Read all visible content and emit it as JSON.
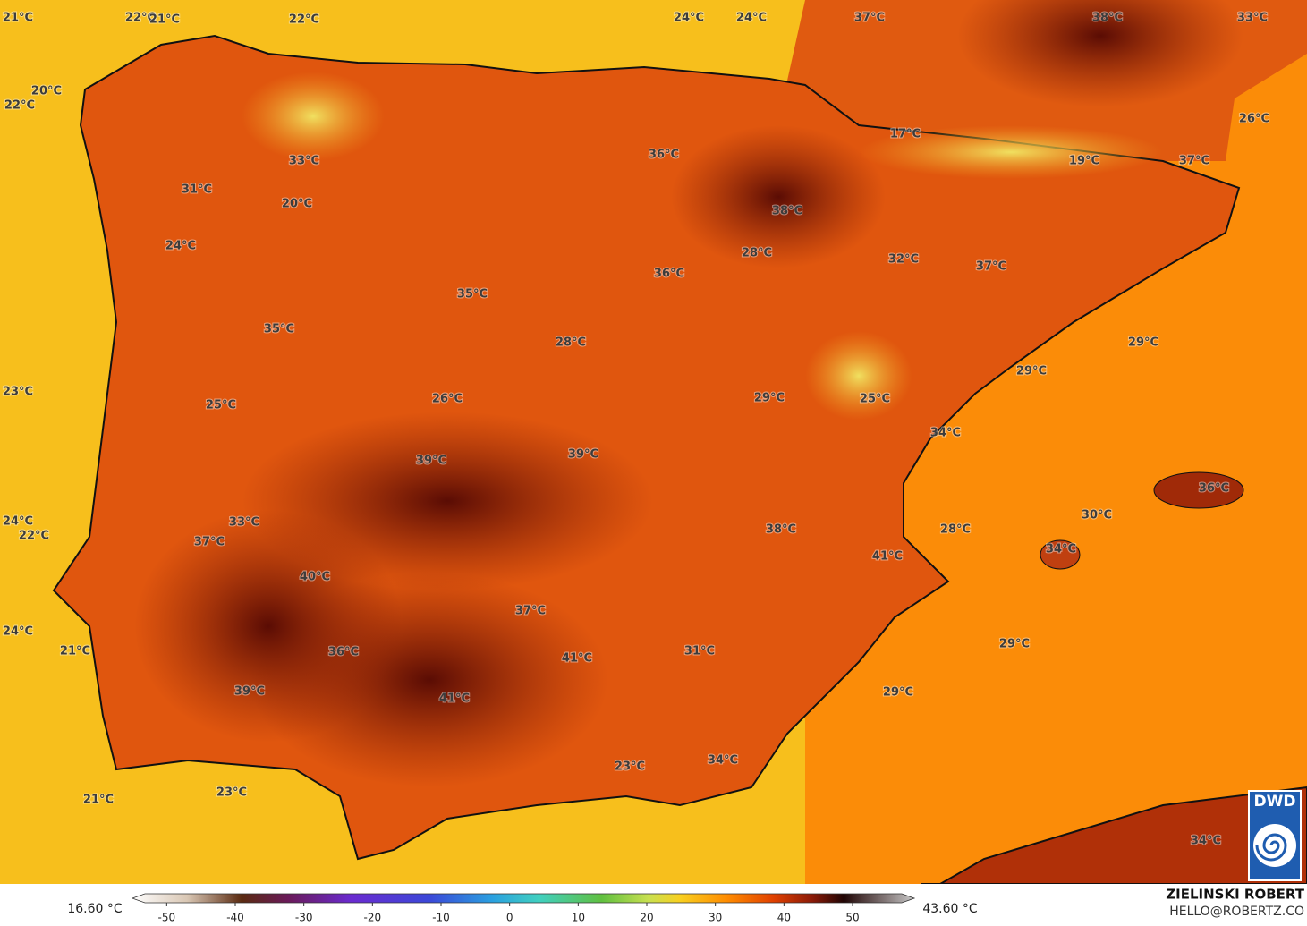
{
  "map": {
    "labels": [
      "21°C",
      "22°C",
      "21°C",
      "22°C",
      "24°C",
      "24°C",
      "37°C",
      "38°C",
      "33°C",
      "20°C",
      "22°C",
      "26°C",
      "17°C",
      "36°C",
      "19°C",
      "37°C",
      "33°C",
      "31°C",
      "20°C",
      "38°C",
      "24°C",
      "28°C",
      "32°C",
      "37°C",
      "36°C",
      "35°C",
      "35°C",
      "28°C",
      "29°C",
      "29°C",
      "23°C",
      "29°C",
      "26°C",
      "25°C",
      "25°C",
      "34°C",
      "39°C",
      "39°C",
      "36°C",
      "30°C",
      "24°C",
      "33°C",
      "22°C",
      "38°C",
      "28°C",
      "37°C",
      "34°C",
      "41°C",
      "40°C",
      "37°C",
      "24°C",
      "29°C",
      "21°C",
      "36°C",
      "31°C",
      "41°C",
      "29°C",
      "39°C",
      "41°C",
      "34°C",
      "23°C",
      "23°C",
      "21°C",
      "34°C"
    ]
  },
  "colorbar": {
    "min_label": "16.60 °C",
    "max_label": "43.60 °C",
    "lim": [
      -55,
      59
    ],
    "ticks": [
      -50,
      -40,
      -30,
      -20,
      -10,
      0,
      10,
      20,
      30,
      40,
      50
    ]
  },
  "credit": {
    "author": "ZIELINSKI ROBERT",
    "email": "HELLO@ROBERTZ.CO"
  },
  "logo": "DWD"
}
